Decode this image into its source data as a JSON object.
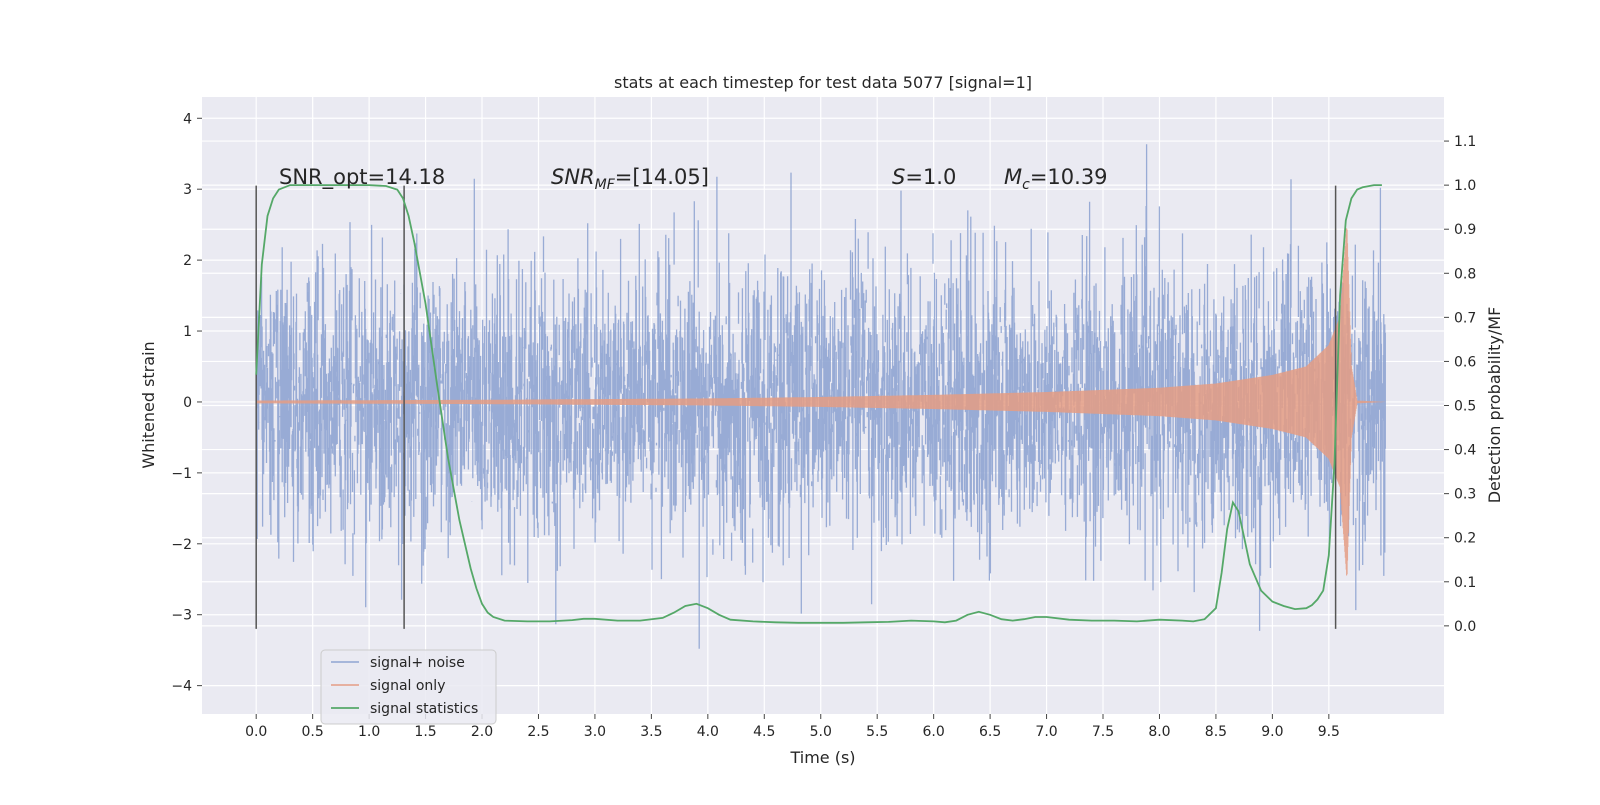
{
  "chart_data": {
    "type": "line",
    "title": "stats at each timestep for test data 5077 [signal=1]",
    "xlabel": "Time (s)",
    "ylabel": "Whitened strain",
    "y2label": "Detection probability/MF",
    "xlim": [
      -0.48,
      10.52
    ],
    "ylim": [
      -4.4,
      4.3
    ],
    "y2lim": [
      -0.2,
      1.2
    ],
    "x_ticks": [
      "0.0",
      "0.5",
      "1.0",
      "1.5",
      "2.0",
      "2.5",
      "3.0",
      "3.5",
      "4.0",
      "4.5",
      "5.0",
      "5.5",
      "6.0",
      "6.5",
      "7.0",
      "7.5",
      "8.0",
      "8.5",
      "9.0",
      "9.5"
    ],
    "y_ticks": [
      "4",
      "3",
      "2",
      "1",
      "0",
      "−1",
      "−2",
      "−3",
      "−4"
    ],
    "y2_ticks": [
      "1.1",
      "1.0",
      "0.9",
      "0.8",
      "0.7",
      "0.6",
      "0.5",
      "0.4",
      "0.3",
      "0.2",
      "0.1",
      "0.0"
    ],
    "grid": true,
    "legend_position": "lower-left",
    "annotations": {
      "snr_opt": "SNR_opt=14.18",
      "snr_mf_sym": "SNR",
      "snr_mf_sub": "MF",
      "snr_mf_val": "=[14.05]",
      "s_sym": "S",
      "s_val": "=1.0",
      "mc_sym": "M",
      "mc_sub": "c",
      "mc_val": "=10.39"
    },
    "vertical_lines_x": [
      0.0,
      1.31,
      9.56
    ],
    "vertical_lines_y": [
      -3.2,
      3.05
    ],
    "series": [
      {
        "name": "signal+ noise",
        "color": "#8fa4d2",
        "axis": "left",
        "description_range": [
          -3.6,
          3.9
        ]
      },
      {
        "name": "signal only",
        "color": "#e49c84",
        "axis": "left",
        "amplitude_envelope": {
          "t": [
            0.0,
            2.0,
            4.0,
            5.0,
            6.0,
            7.0,
            8.0,
            8.5,
            9.0,
            9.3,
            9.5,
            9.6,
            9.66,
            9.7,
            9.75,
            10.0
          ],
          "a": [
            0.02,
            0.03,
            0.05,
            0.07,
            0.1,
            0.14,
            0.2,
            0.26,
            0.38,
            0.5,
            0.8,
            1.2,
            2.5,
            0.5,
            0.02,
            0.0
          ]
        }
      },
      {
        "name": "signal statistics",
        "color": "#55a868",
        "axis": "right",
        "x": [
          0.0,
          0.05,
          0.1,
          0.15,
          0.2,
          0.3,
          0.5,
          0.8,
          1.0,
          1.15,
          1.25,
          1.3,
          1.35,
          1.4,
          1.5,
          1.6,
          1.7,
          1.8,
          1.9,
          1.95,
          2.0,
          2.05,
          2.1,
          2.2,
          2.4,
          2.6,
          2.8,
          2.9,
          3.0,
          3.2,
          3.4,
          3.6,
          3.7,
          3.8,
          3.9,
          4.0,
          4.1,
          4.2,
          4.4,
          4.6,
          4.8,
          5.0,
          5.2,
          5.4,
          5.6,
          5.8,
          6.0,
          6.1,
          6.2,
          6.3,
          6.4,
          6.5,
          6.6,
          6.7,
          6.8,
          6.9,
          7.0,
          7.2,
          7.4,
          7.6,
          7.8,
          8.0,
          8.2,
          8.3,
          8.4,
          8.5,
          8.55,
          8.6,
          8.65,
          8.7,
          8.75,
          8.8,
          8.9,
          9.0,
          9.1,
          9.2,
          9.3,
          9.35,
          9.4,
          9.45,
          9.5,
          9.55,
          9.6,
          9.65,
          9.7,
          9.75,
          9.8,
          9.9,
          9.97
        ],
        "values": [
          0.57,
          0.82,
          0.93,
          0.97,
          0.99,
          1.0,
          1.0,
          1.0,
          1.0,
          0.998,
          0.99,
          0.97,
          0.93,
          0.87,
          0.73,
          0.55,
          0.38,
          0.24,
          0.13,
          0.085,
          0.05,
          0.03,
          0.02,
          0.012,
          0.01,
          0.01,
          0.013,
          0.016,
          0.016,
          0.012,
          0.012,
          0.018,
          0.03,
          0.045,
          0.05,
          0.04,
          0.025,
          0.014,
          0.01,
          0.008,
          0.007,
          0.007,
          0.007,
          0.008,
          0.009,
          0.012,
          0.01,
          0.008,
          0.012,
          0.025,
          0.032,
          0.025,
          0.015,
          0.012,
          0.015,
          0.02,
          0.02,
          0.014,
          0.012,
          0.012,
          0.01,
          0.014,
          0.012,
          0.01,
          0.015,
          0.04,
          0.12,
          0.22,
          0.28,
          0.26,
          0.2,
          0.14,
          0.08,
          0.055,
          0.045,
          0.038,
          0.04,
          0.047,
          0.06,
          0.08,
          0.16,
          0.37,
          0.75,
          0.92,
          0.97,
          0.99,
          0.995,
          1.0,
          1.0
        ]
      }
    ]
  }
}
